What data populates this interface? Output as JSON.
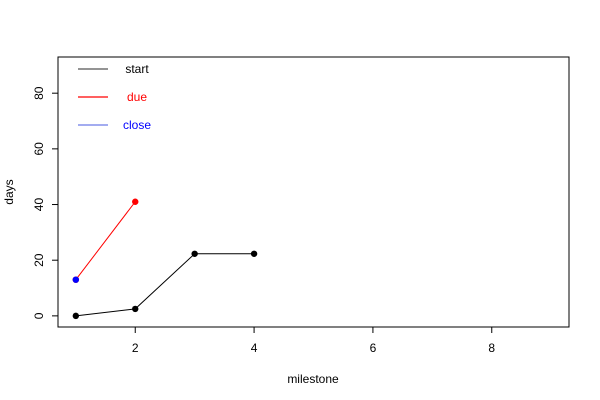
{
  "chart_data": {
    "type": "line",
    "xlabel": "milestone",
    "ylabel": "days",
    "xlim": [
      0.7,
      9.3
    ],
    "ylim": [
      -4,
      93
    ],
    "x_ticks": [
      "2",
      "4",
      "6",
      "8"
    ],
    "y_ticks": [
      "0",
      "20",
      "40",
      "60",
      "80"
    ],
    "legend_position": "top-left",
    "series": [
      {
        "name": "start",
        "color": "#000000",
        "points": [
          [
            1,
            0
          ],
          [
            2,
            2.5
          ],
          [
            3,
            22.3
          ],
          [
            4,
            22.3
          ]
        ]
      },
      {
        "name": "due",
        "color": "#ff0000",
        "points": [
          [
            1,
            13
          ],
          [
            2,
            41
          ]
        ]
      },
      {
        "name": "close",
        "color": "#0000ff",
        "points": [
          [
            1,
            13
          ]
        ]
      }
    ],
    "legend": [
      {
        "label": "start",
        "color": "#000000",
        "line_color": "#555555"
      },
      {
        "label": "due",
        "color": "#ff0000",
        "line_color": "#ff0000"
      },
      {
        "label": "close",
        "color": "#0000ff",
        "line_color": "#6c7be8"
      }
    ]
  }
}
